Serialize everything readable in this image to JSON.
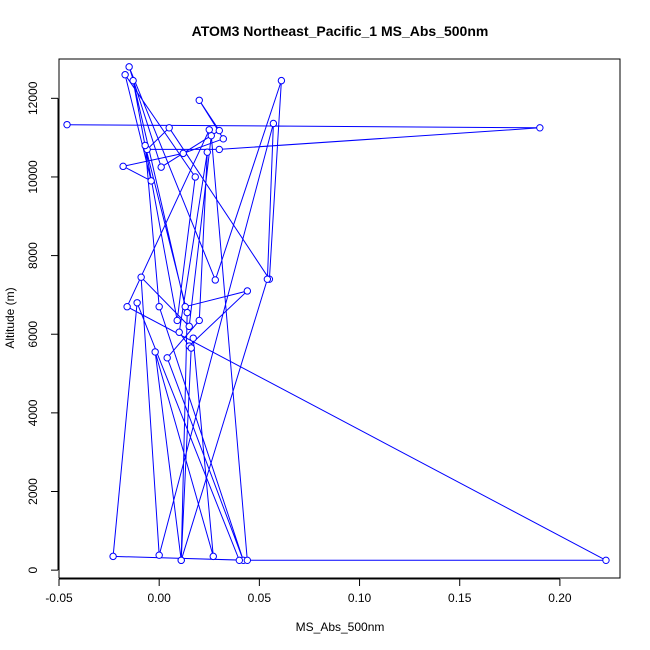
{
  "chart_data": {
    "type": "scatter",
    "title": "ATOM3 Northeast_Pacific_1 MS_Abs_500nm",
    "xlabel": "MS_Abs_500nm",
    "ylabel": "Altitude (m)",
    "xlim": [
      -0.05,
      0.23
    ],
    "ylim": [
      -200,
      13000
    ],
    "x_ticks": [
      -0.05,
      0,
      0.05,
      0.1,
      0.15,
      0.2
    ],
    "x_tick_labels": [
      "-0.05",
      "0.00",
      "0.05",
      "0.10",
      "0.15",
      "0.20"
    ],
    "y_ticks": [
      0,
      2000,
      4000,
      6000,
      8000,
      10000,
      12000
    ],
    "y_tick_labels": [
      "0",
      "2000",
      "4000",
      "6000",
      "8000",
      "10000",
      "12000"
    ],
    "series_color": "#0000ff",
    "grid": false,
    "markers": "open circles connected by lines",
    "series": [
      {
        "x": [
          -0.046,
          0.19,
          0.03,
          -0.006,
          0.005,
          0.055,
          0.061,
          0.028,
          -0.015,
          0.001,
          0.03,
          0.02,
          0.032,
          0.012,
          -0.018,
          -0.004,
          -0.017,
          0.018,
          0.009,
          -0.013,
          0.013,
          0.044,
          0.015,
          0.01,
          0.024,
          0.02,
          0.004,
          0.042,
          0.0,
          -0.007,
          0.014,
          0.011,
          -0.002,
          0.027,
          0.017,
          0.016,
          0.011,
          0.054,
          0.057,
          0.0,
          -0.009,
          0.015,
          0.026,
          0.044,
          -0.023,
          -0.011,
          0.04,
          0.223,
          -0.016,
          0.025
        ],
        "y": [
          11330,
          11250,
          10700,
          10700,
          11250,
          7400,
          12450,
          7380,
          12800,
          10250,
          11180,
          11950,
          10970,
          10600,
          10270,
          9900,
          12600,
          10000,
          6350,
          12450,
          6700,
          7100,
          5700,
          6050,
          10630,
          6350,
          5400,
          250,
          6700,
          10800,
          6550,
          250,
          5550,
          350,
          5900,
          5650,
          250,
          7400,
          11360,
          380,
          7450,
          6200,
          11050,
          250,
          350,
          6800,
          250,
          250,
          6700,
          11200
        ]
      }
    ]
  }
}
